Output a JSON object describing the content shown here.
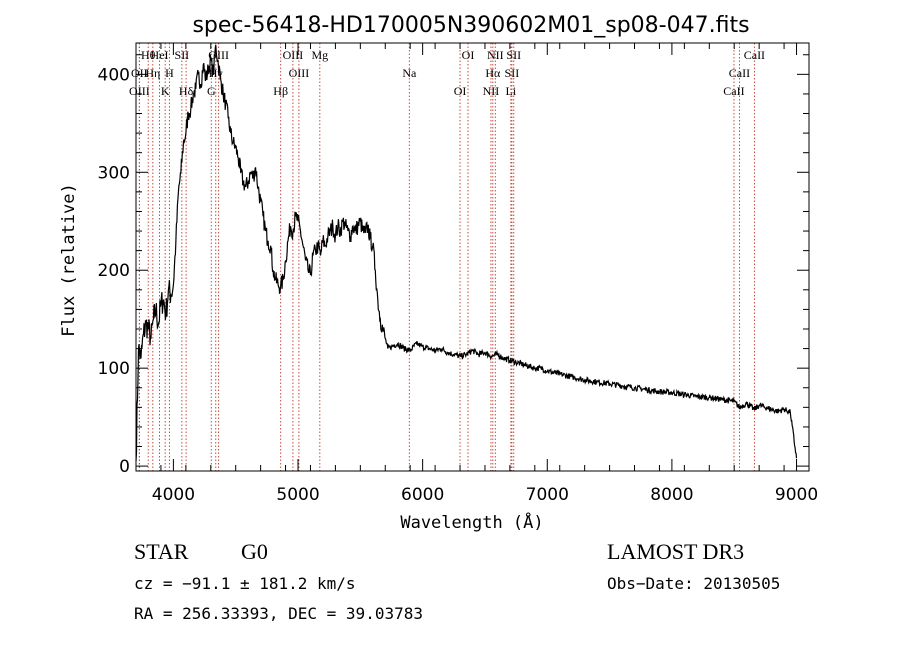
{
  "chart_data": {
    "type": "line",
    "title": "spec-56418-HD170005N390602M01_sp08-047.fits",
    "xlabel": "Wavelength (Å)",
    "ylabel": "Flux (relative)",
    "xlim": [
      3700,
      9100
    ],
    "ylim": [
      -5,
      432
    ],
    "xticks": [
      4000,
      5000,
      6000,
      7000,
      8000,
      9000
    ],
    "yticks": [
      0,
      100,
      200,
      300,
      400
    ],
    "grid": false,
    "series": [
      {
        "x": [
          3700,
          3720,
          3740,
          3760,
          3780,
          3800,
          3820,
          3840,
          3860,
          3880,
          3900,
          3920,
          3940,
          3960,
          3980,
          4000,
          4020,
          4040,
          4060,
          4080,
          4100,
          4120,
          4140,
          4160,
          4180,
          4200,
          4220,
          4240,
          4260,
          4280,
          4300,
          4320,
          4340,
          4360,
          4380,
          4400,
          4420,
          4440,
          4460,
          4480,
          4500,
          4520,
          4540,
          4560,
          4580,
          4600,
          4620,
          4640,
          4660,
          4680,
          4700,
          4720,
          4740,
          4760,
          4780,
          4800,
          4820,
          4840,
          4860,
          4880,
          4900,
          4920,
          4940,
          4960,
          4980,
          5000,
          5020,
          5040,
          5060,
          5080,
          5100,
          5120,
          5140,
          5160,
          5180,
          5200,
          5220,
          5240,
          5260,
          5280,
          5300,
          5320,
          5340,
          5360,
          5380,
          5400,
          5420,
          5440,
          5460,
          5480,
          5500,
          5520,
          5540,
          5560,
          5580,
          5600,
          5620,
          5640,
          5660,
          5680,
          5700,
          5720,
          5750,
          5800,
          5850,
          5900,
          5950,
          6000,
          6050,
          6100,
          6150,
          6200,
          6250,
          6300,
          6350,
          6400,
          6450,
          6500,
          6550,
          6600,
          6650,
          6700,
          6750,
          6800,
          6850,
          6900,
          6950,
          7000,
          7100,
          7200,
          7300,
          7400,
          7500,
          7600,
          7700,
          7800,
          7900,
          8000,
          8100,
          8200,
          8300,
          8400,
          8500,
          8540,
          8600,
          8660,
          8700,
          8800,
          8850,
          8900,
          8950,
          9000
        ],
        "y": [
          5,
          120,
          110,
          135,
          145,
          140,
          130,
          150,
          160,
          145,
          165,
          170,
          155,
          180,
          175,
          185,
          230,
          280,
          300,
          330,
          340,
          360,
          365,
          380,
          385,
          400,
          390,
          410,
          395,
          405,
          415,
          400,
          430,
          410,
          395,
          380,
          370,
          355,
          340,
          330,
          325,
          315,
          300,
          290,
          285,
          290,
          300,
          295,
          305,
          285,
          270,
          255,
          240,
          230,
          225,
          200,
          190,
          185,
          183,
          190,
          210,
          230,
          245,
          240,
          255,
          250,
          240,
          225,
          210,
          200,
          195,
          215,
          220,
          225,
          215,
          230,
          225,
          235,
          240,
          245,
          235,
          245,
          240,
          250,
          245,
          240,
          235,
          245,
          240,
          245,
          250,
          240,
          238,
          245,
          232,
          225,
          200,
          170,
          150,
          140,
          130,
          120,
          122,
          125,
          120,
          118,
          125,
          122,
          120,
          118,
          120,
          116,
          114,
          112,
          114,
          118,
          114,
          116,
          112,
          114,
          110,
          108,
          106,
          104,
          102,
          100,
          100,
          97,
          94,
          91,
          88,
          86,
          84,
          82,
          80,
          78,
          76,
          75,
          73,
          71,
          70,
          68,
          66,
          60,
          64,
          58,
          62,
          58,
          56,
          58,
          55,
          8
        ]
      }
    ],
    "spectral_lines": [
      {
        "label": "Hθ",
        "x": 3798
      },
      {
        "label": "OII",
        "x": 3727
      },
      {
        "label": "OIII",
        "x": 3727
      },
      {
        "label": "HeI",
        "x": 3889
      },
      {
        "label": "Hη",
        "x": 3835
      },
      {
        "label": "K",
        "x": 3934
      },
      {
        "label": "SII",
        "x": 4068
      },
      {
        "label": "H",
        "x": 3968
      },
      {
        "label": "Hδ",
        "x": 4102
      },
      {
        "label": "OIII",
        "x": 4363
      },
      {
        "label": "Hγ",
        "x": 4340
      },
      {
        "label": "G",
        "x": 4304
      },
      {
        "label": "OIII",
        "x": 4959
      },
      {
        "label": "OIII",
        "x": 5007
      },
      {
        "label": "Hβ",
        "x": 4861
      },
      {
        "label": "Mg",
        "x": 5175
      },
      {
        "label": "Na",
        "x": 5893
      },
      {
        "label": "OI",
        "x": 6300
      },
      {
        "label": "OI",
        "x": 6364
      },
      {
        "label": "Hα",
        "x": 6563
      },
      {
        "label": "NII",
        "x": 6548
      },
      {
        "label": "NII",
        "x": 6583
      },
      {
        "label": "SII",
        "x": 6716
      },
      {
        "label": "Li",
        "x": 6708
      },
      {
        "label": "SII",
        "x": 6731
      },
      {
        "label": "CaII",
        "x": 8542
      },
      {
        "label": "CaII",
        "x": 8498
      },
      {
        "label": "CaII",
        "x": 8662
      }
    ]
  },
  "info": {
    "object_class": "STAR",
    "subclass": "G0",
    "survey": "LAMOST DR3",
    "redshift": "cz = −91.1 ± 181.2 km/s",
    "obs_date": "Obs−Date: 20130505",
    "coordinates": "RA = 256.33393, DEC =  39.03783"
  }
}
